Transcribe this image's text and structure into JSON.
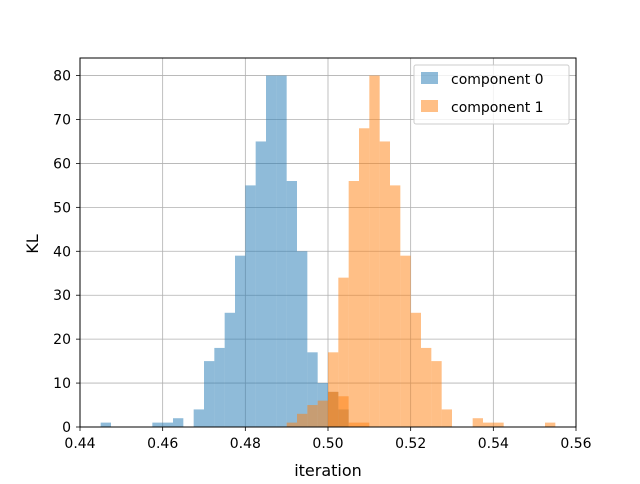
{
  "chart_data": {
    "type": "histogram",
    "title": "",
    "xlabel": "iteration",
    "ylabel": "KL",
    "xlim": [
      0.44,
      0.56
    ],
    "ylim": [
      0,
      84
    ],
    "xticks": [
      0.44,
      0.46,
      0.48,
      0.5,
      0.52,
      0.54,
      0.56
    ],
    "xtick_labels": [
      "0.44",
      "0.46",
      "0.48",
      "0.50",
      "0.52",
      "0.54",
      "0.56"
    ],
    "yticks": [
      0,
      10,
      20,
      30,
      40,
      50,
      60,
      70,
      80
    ],
    "ytick_labels": [
      "0",
      "10",
      "20",
      "30",
      "40",
      "50",
      "60",
      "70",
      "80"
    ],
    "grid": true,
    "legend_position": "top-right",
    "series": [
      {
        "name": "component 0",
        "color": "#1f77b4",
        "alpha": 0.5,
        "bins": [
          [
            0.445,
            0.4475,
            1
          ],
          [
            0.4575,
            0.46,
            1
          ],
          [
            0.46,
            0.4625,
            1
          ],
          [
            0.4625,
            0.465,
            2
          ],
          [
            0.4675,
            0.47,
            4
          ],
          [
            0.47,
            0.4725,
            15
          ],
          [
            0.4725,
            0.475,
            18
          ],
          [
            0.475,
            0.4775,
            26
          ],
          [
            0.4775,
            0.48,
            39
          ],
          [
            0.48,
            0.4825,
            55
          ],
          [
            0.4825,
            0.485,
            65
          ],
          [
            0.485,
            0.4875,
            80
          ],
          [
            0.4875,
            0.49,
            80
          ],
          [
            0.49,
            0.4925,
            56
          ],
          [
            0.4925,
            0.495,
            40
          ],
          [
            0.495,
            0.4975,
            17
          ],
          [
            0.4975,
            0.5,
            10
          ],
          [
            0.5,
            0.5025,
            8
          ],
          [
            0.5025,
            0.505,
            4
          ]
        ]
      },
      {
        "name": "component 1",
        "color": "#ff7f0e",
        "alpha": 0.5,
        "bins": [
          [
            0.49,
            0.4925,
            1
          ],
          [
            0.4925,
            0.495,
            3
          ],
          [
            0.495,
            0.4975,
            5
          ],
          [
            0.4975,
            0.5,
            6
          ],
          [
            0.5,
            0.5025,
            8
          ],
          [
            0.5025,
            0.505,
            7
          ],
          [
            0.505,
            0.5075,
            1
          ],
          [
            0.5075,
            0.51,
            1
          ],
          [
            0.5,
            0.5025,
            17
          ],
          [
            0.5025,
            0.505,
            34
          ],
          [
            0.505,
            0.5075,
            56
          ],
          [
            0.5075,
            0.51,
            68
          ],
          [
            0.51,
            0.5125,
            80
          ],
          [
            0.5125,
            0.515,
            65
          ],
          [
            0.515,
            0.5175,
            55
          ],
          [
            0.5175,
            0.52,
            39
          ],
          [
            0.52,
            0.5225,
            26
          ],
          [
            0.5225,
            0.525,
            18
          ],
          [
            0.525,
            0.5275,
            15
          ],
          [
            0.5275,
            0.53,
            4
          ],
          [
            0.535,
            0.5375,
            2
          ],
          [
            0.5375,
            0.54,
            1
          ],
          [
            0.54,
            0.5425,
            1
          ],
          [
            0.5525,
            0.555,
            1
          ]
        ]
      }
    ]
  }
}
